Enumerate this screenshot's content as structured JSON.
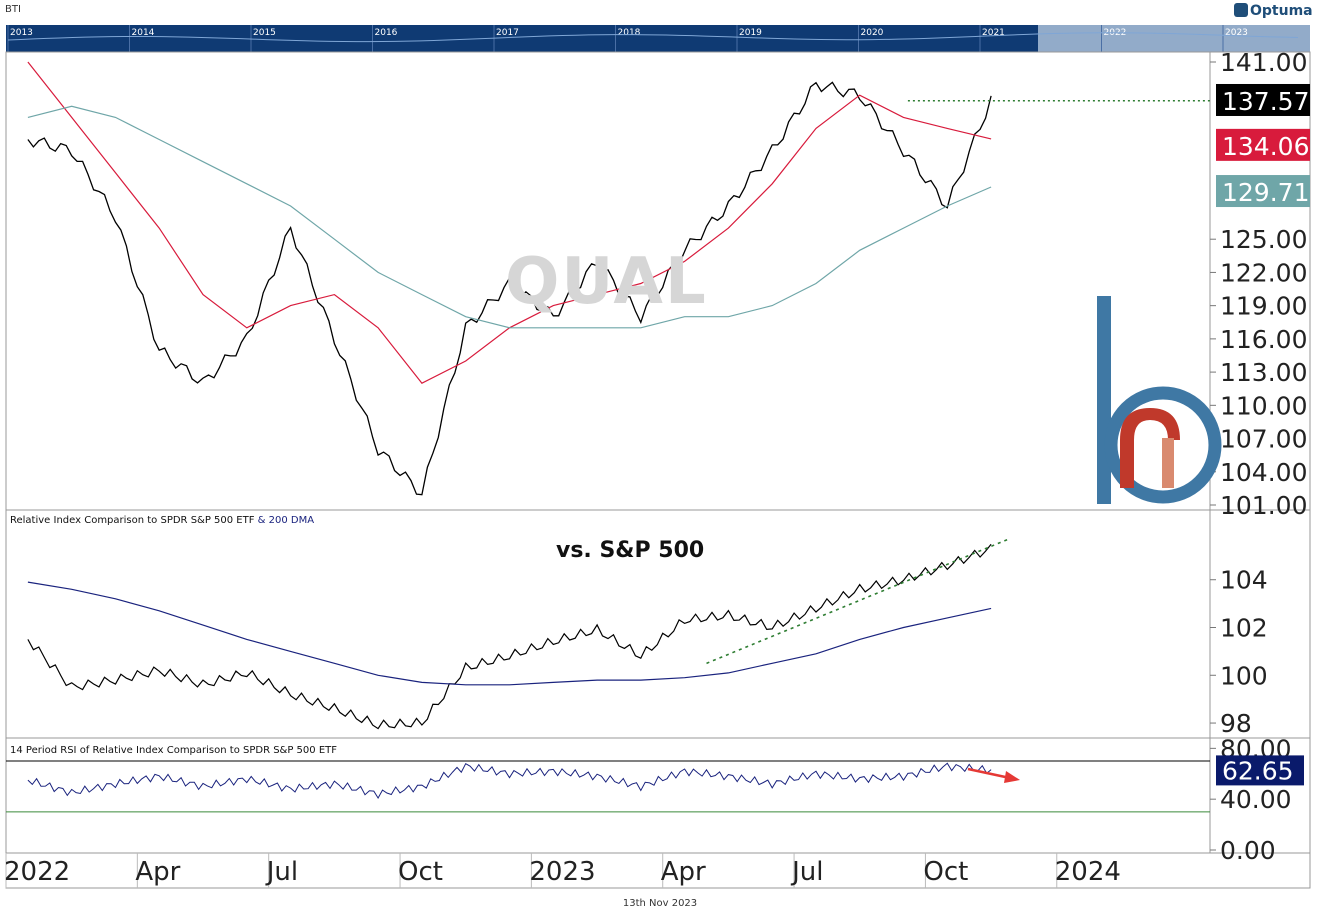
{
  "symbol": "BTI",
  "brand": "Optuma",
  "watermark": "QUAL",
  "date": "13th Nov 2023",
  "annotation": "vs. S&P 500",
  "overview_years": [
    "2013",
    "2014",
    "2015",
    "2016",
    "2017",
    "2018",
    "2019",
    "2020",
    "2021",
    "2022",
    "2023"
  ],
  "x_labels": [
    "2022",
    "Apr",
    "Jul",
    "Oct",
    "2023",
    "Apr",
    "Jul",
    "Oct",
    "2024"
  ],
  "colors": {
    "ma50": "#d81b3c",
    "ma200": "#6fa6a8",
    "rel_ma": "#1a237e",
    "rsi": "#1a237e",
    "trend": "#2e7d32",
    "arrow": "#e53935",
    "overview": "#1a4a8a",
    "brand_blue": "#3f78a4",
    "brand_red": "#c0392b"
  },
  "chart_data": [
    {
      "type": "line",
      "title": "",
      "series": [
        {
          "name": "",
          "x": [
            "2022-01",
            "2022-02",
            "2022-03",
            "2022-04",
            "2022-05",
            "2022-06",
            "2022-07",
            "2022-08",
            "2022-09",
            "2022-10",
            "2022-11",
            "2022-12",
            "2023-01",
            "2023-02",
            "2023-03",
            "2023-04",
            "2023-05",
            "2023-06",
            "2023-07",
            "2023-08",
            "2023-09",
            "2023-10",
            "2023-11"
          ],
          "values": [
            134,
            133,
            127,
            115,
            112,
            116,
            126,
            116,
            106,
            102,
            117,
            121,
            118,
            123,
            118,
            124,
            128,
            133,
            139,
            138,
            133,
            128,
            137.57
          ]
        },
        {
          "name": "",
          "x": [
            "2022-01",
            "2022-02",
            "2022-03",
            "2022-04",
            "2022-05",
            "2022-06",
            "2022-07",
            "2022-08",
            "2022-09",
            "2022-10",
            "2022-11",
            "2022-12",
            "2023-01",
            "2023-02",
            "2023-03",
            "2023-04",
            "2023-05",
            "2023-06",
            "2023-07",
            "2023-08",
            "2023-09",
            "2023-10",
            "2023-11"
          ],
          "values": [
            141,
            136,
            131,
            126,
            120,
            117,
            119,
            120,
            117,
            112,
            114,
            117,
            119,
            120,
            121,
            123,
            126,
            130,
            135,
            138,
            136,
            135,
            134.06
          ]
        },
        {
          "name": "",
          "x": [
            "2022-01",
            "2022-02",
            "2022-03",
            "2022-04",
            "2022-05",
            "2022-06",
            "2022-07",
            "2022-08",
            "2022-09",
            "2022-10",
            "2022-11",
            "2022-12",
            "2023-01",
            "2023-02",
            "2023-03",
            "2023-04",
            "2023-05",
            "2023-06",
            "2023-07",
            "2023-08",
            "2023-09",
            "2023-10",
            "2023-11"
          ],
          "values": [
            136,
            137,
            136,
            134,
            132,
            130,
            128,
            125,
            122,
            120,
            118,
            117,
            117,
            117,
            117,
            118,
            118,
            119,
            121,
            124,
            126,
            128,
            129.71
          ]
        }
      ],
      "yticks": [
        "141.00",
        "125.00",
        "122.00",
        "119.00",
        "116.00",
        "113.00",
        "110.00",
        "107.00",
        "104.00",
        "101.00"
      ],
      "last_values": [
        "137.57",
        "134.06",
        "129.71"
      ],
      "ylim": [
        101,
        141
      ],
      "annotations": [
        "horizontal dotted green line at 137.5 from Sep 2023"
      ]
    },
    {
      "type": "line",
      "title": "Relative Index Comparison to SPDR S&P 500 ETF",
      "title_suffix": " & 200 DMA",
      "series": [
        {
          "name": "",
          "x": [
            "2022-01",
            "2022-02",
            "2022-03",
            "2022-04",
            "2022-05",
            "2022-06",
            "2022-07",
            "2022-08",
            "2022-09",
            "2022-10",
            "2022-11",
            "2022-12",
            "2023-01",
            "2023-02",
            "2023-03",
            "2023-04",
            "2023-05",
            "2023-06",
            "2023-07",
            "2023-08",
            "2023-09",
            "2023-10",
            "2023-11"
          ],
          "values": [
            101.5,
            99.5,
            99.8,
            100.2,
            99.6,
            100.1,
            99.2,
            98.6,
            97.9,
            98.0,
            100.3,
            100.8,
            101.4,
            101.9,
            100.8,
            102.3,
            102.5,
            102.0,
            102.8,
            103.6,
            104.0,
            104.6,
            105.3
          ]
        },
        {
          "name": "",
          "x": [
            "2022-01",
            "2022-02",
            "2022-03",
            "2022-04",
            "2022-05",
            "2022-06",
            "2022-07",
            "2022-08",
            "2022-09",
            "2022-10",
            "2022-11",
            "2022-12",
            "2023-01",
            "2023-02",
            "2023-03",
            "2023-04",
            "2023-05",
            "2023-06",
            "2023-07",
            "2023-08",
            "2023-09",
            "2023-10",
            "2023-11"
          ],
          "values": [
            103.9,
            103.6,
            103.2,
            102.7,
            102.1,
            101.5,
            101.0,
            100.5,
            100.0,
            99.7,
            99.6,
            99.6,
            99.7,
            99.8,
            99.8,
            99.9,
            100.1,
            100.5,
            100.9,
            101.5,
            102.0,
            102.4,
            102.8
          ]
        }
      ],
      "yticks": [
        "104",
        "102",
        "100",
        "98"
      ],
      "ylim": [
        97.5,
        106.5
      ],
      "annotations": [
        "dotted green uptrend line from May 2023 (100.5) to Nov 2023 (105.7)"
      ]
    },
    {
      "type": "line",
      "title": "14 Period RSI of Relative Index Comparison to SPDR S&P 500 ETF",
      "series": [
        {
          "name": "",
          "x": [
            "2022-01",
            "2022-02",
            "2022-03",
            "2022-04",
            "2022-05",
            "2022-06",
            "2022-07",
            "2022-08",
            "2022-09",
            "2022-10",
            "2022-11",
            "2022-12",
            "2023-01",
            "2023-02",
            "2023-03",
            "2023-04",
            "2023-05",
            "2023-06",
            "2023-07",
            "2023-08",
            "2023-09",
            "2023-10",
            "2023-11"
          ],
          "values": [
            55,
            45,
            52,
            58,
            50,
            56,
            48,
            52,
            44,
            50,
            66,
            60,
            62,
            58,
            50,
            62,
            58,
            52,
            60,
            56,
            58,
            66,
            62.65
          ]
        }
      ],
      "yticks": [
        "80.00",
        "40.00",
        "0.00"
      ],
      "last_values": [
        "62.65"
      ],
      "ylim": [
        0,
        85
      ],
      "reference_lines": [
        70,
        30
      ],
      "annotations": [
        "red arrow pointing down-right near Oct 2023"
      ]
    }
  ]
}
